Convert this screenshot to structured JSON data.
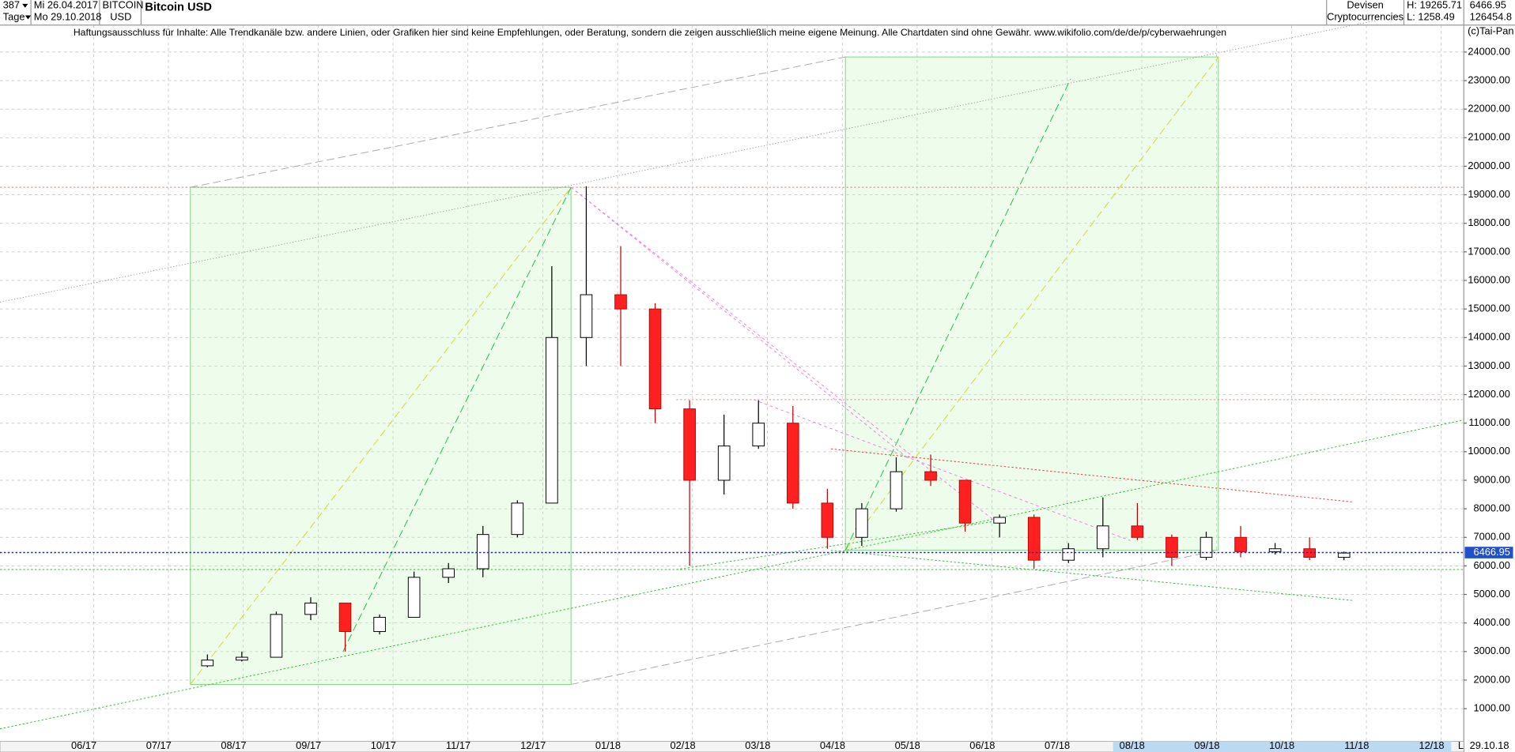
{
  "header": {
    "count": "387",
    "interval": "Tage",
    "from": "Mi 26.04.2017",
    "to": "Mo 29.10.2018",
    "symbol": "BITCOIN",
    "currency": "USD",
    "market": "Devisen",
    "group": "Cryptocurrencies",
    "high": "H: 19265.71",
    "low": "L: 1258.49",
    "volume": "126454.8",
    "copyright": "(c)Tai-Pan",
    "scale_mode": "L",
    "end_date": "29.10.18"
  },
  "chart_data": {
    "type": "candlestick",
    "title": "Bitcoin USD",
    "subtitle": "Haftungsausschluss für Inhalte: Alle Trendkanäle bzw. andere Linien, oder Grafiken hier sind keine Empfehlungen, oder Beratung, sondern die zeigen ausschließlich meine eigene Meinung. Alle Chartdaten sind ohne Gewähr.  www.wikifolio.com/de/de/p/cyberwaehrungen",
    "x": [
      1.65,
      2.11,
      2.57,
      3.03,
      3.49,
      3.95,
      4.41,
      4.87,
      5.33,
      5.79,
      6.25,
      6.71,
      7.17,
      7.63,
      8.09,
      8.55,
      9.01,
      9.47,
      9.93,
      10.39,
      10.85,
      11.31,
      11.77,
      12.23,
      12.69,
      13.15,
      13.61,
      14.07,
      14.53,
      14.99,
      15.45,
      15.91,
      16.37,
      16.83
    ],
    "open": [
      2500,
      2700,
      2800,
      4300,
      4700,
      3700,
      4200,
      5600,
      5900,
      7100,
      8200,
      14000,
      15500,
      15000,
      11500,
      9000,
      10200,
      11000,
      8200,
      7000,
      8000,
      9300,
      9000,
      7500,
      7700,
      6200,
      6600,
      7400,
      7000,
      6300,
      7000,
      6500,
      6600,
      6300
    ],
    "high": [
      2900,
      3000,
      4400,
      4900,
      4700,
      4300,
      5800,
      6100,
      7400,
      8300,
      16500,
      19300,
      17200,
      15200,
      11800,
      11300,
      11800,
      11600,
      8700,
      8200,
      9800,
      9900,
      9000,
      7800,
      7800,
      6800,
      8400,
      8200,
      7100,
      7200,
      7400,
      6800,
      7000,
      6500
    ],
    "low": [
      2450,
      2650,
      2800,
      4100,
      3000,
      3600,
      4200,
      5400,
      5600,
      7000,
      8200,
      13000,
      13000,
      11000,
      6000,
      8500,
      10100,
      8000,
      6600,
      6700,
      7900,
      8800,
      7200,
      7000,
      5900,
      6100,
      6300,
      6900,
      6000,
      6200,
      6300,
      6400,
      6200,
      6200
    ],
    "close": [
      2700,
      2800,
      4300,
      4700,
      3700,
      4200,
      5600,
      5900,
      7100,
      8200,
      14000,
      15500,
      15000,
      11500,
      9000,
      10200,
      11000,
      8200,
      7000,
      8000,
      9300,
      9000,
      7500,
      7700,
      6200,
      6600,
      7400,
      7000,
      6300,
      7000,
      6500,
      6600,
      6300,
      6450
    ],
    "up_color": "#ffffff",
    "down_color": "#ff2020",
    "last_price": 6466.95,
    "xlim": [
      -1.12,
      18.43
    ],
    "xticks": [
      {
        "value": 0,
        "label": "06/17"
      },
      {
        "value": 1,
        "label": "07/17"
      },
      {
        "value": 2,
        "label": "08/17"
      },
      {
        "value": 3,
        "label": "09/17"
      },
      {
        "value": 4,
        "label": "10/17"
      },
      {
        "value": 5,
        "label": "11/17"
      },
      {
        "value": 6,
        "label": "12/17"
      },
      {
        "value": 7,
        "label": "01/18"
      },
      {
        "value": 8,
        "label": "02/18"
      },
      {
        "value": 9,
        "label": "03/18"
      },
      {
        "value": 10,
        "label": "04/18"
      },
      {
        "value": 11,
        "label": "05/18"
      },
      {
        "value": 12,
        "label": "06/18"
      },
      {
        "value": 13,
        "label": "07/18"
      },
      {
        "value": 14,
        "label": "08/18"
      },
      {
        "value": 15,
        "label": "09/18"
      },
      {
        "value": 16,
        "label": "10/18"
      },
      {
        "value": 17,
        "label": "11/18"
      },
      {
        "value": 18,
        "label": "12/18"
      }
    ],
    "ylim": [
      -147,
      24944
    ],
    "yticks": [
      {
        "value": 1000,
        "label": "1000.00"
      },
      {
        "value": 2000,
        "label": "2000.00"
      },
      {
        "value": 3000,
        "label": "3000.00"
      },
      {
        "value": 4000,
        "label": "4000.00"
      },
      {
        "value": 5000,
        "label": "5000.00"
      },
      {
        "value": 6000,
        "label": "6000.00"
      },
      {
        "value": 7000,
        "label": "7000.00"
      },
      {
        "value": 8000,
        "label": "8000.00"
      },
      {
        "value": 9000,
        "label": "9000.00"
      },
      {
        "value": 10000,
        "label": "10000.00"
      },
      {
        "value": 11000,
        "label": "11000.00"
      },
      {
        "value": 12000,
        "label": "12000.00"
      },
      {
        "value": 13000,
        "label": "13000.00"
      },
      {
        "value": 14000,
        "label": "14000.00"
      },
      {
        "value": 15000,
        "label": "15000.00"
      },
      {
        "value": 16000,
        "label": "16000.00"
      },
      {
        "value": 17000,
        "label": "17000.00"
      },
      {
        "value": 18000,
        "label": "18000.00"
      },
      {
        "value": 19000,
        "label": "19000.00"
      },
      {
        "value": 20000,
        "label": "20000.00"
      },
      {
        "value": 21000,
        "label": "21000.00"
      },
      {
        "value": 22000,
        "label": "22000.00"
      },
      {
        "value": 23000,
        "label": "23000.00"
      },
      {
        "value": 24000,
        "label": "24000.00"
      }
    ],
    "grid": true
  }
}
